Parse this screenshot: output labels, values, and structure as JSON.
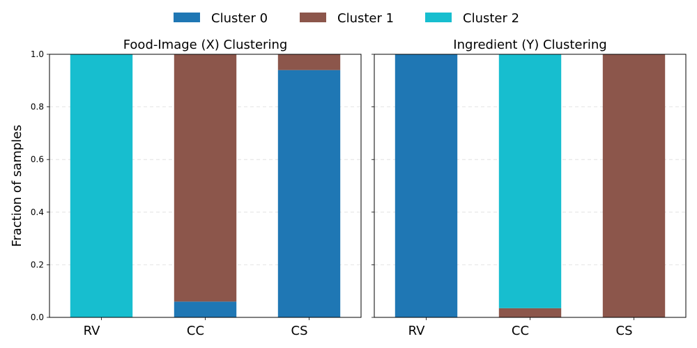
{
  "legend": {
    "placement": "top-center",
    "entries": [
      {
        "label": "Cluster 0",
        "color": "#1f77b4"
      },
      {
        "label": "Cluster 1",
        "color": "#8c564b"
      },
      {
        "label": "Cluster 2",
        "color": "#17becf"
      }
    ]
  },
  "chart_data": [
    {
      "type": "bar",
      "stacked": true,
      "title": "Food-Image (X) Clustering",
      "xlabel": "",
      "ylabel": "Fraction of samples",
      "categories": [
        "RV",
        "CC",
        "CS"
      ],
      "ylim": [
        0,
        1
      ],
      "yticks": [
        "0.0",
        "0.2",
        "0.4",
        "0.6",
        "0.8",
        "1.0"
      ],
      "grid": "horizontal-dashed",
      "series": [
        {
          "name": "Cluster 0",
          "color": "#1f77b4",
          "values": [
            0.0,
            0.06,
            0.94
          ]
        },
        {
          "name": "Cluster 1",
          "color": "#8c564b",
          "values": [
            0.0,
            0.94,
            0.06
          ]
        },
        {
          "name": "Cluster 2",
          "color": "#17becf",
          "values": [
            1.0,
            0.0,
            0.0
          ]
        }
      ]
    },
    {
      "type": "bar",
      "stacked": true,
      "title": "Ingredient (Y) Clustering",
      "xlabel": "",
      "ylabel": "",
      "categories": [
        "RV",
        "CC",
        "CS"
      ],
      "ylim": [
        0,
        1
      ],
      "yticks": [
        "0.0",
        "0.2",
        "0.4",
        "0.6",
        "0.8",
        "1.0"
      ],
      "grid": "horizontal-dashed",
      "series": [
        {
          "name": "Cluster 0",
          "color": "#1f77b4",
          "values": [
            1.0,
            0.0,
            0.0
          ]
        },
        {
          "name": "Cluster 1",
          "color": "#8c564b",
          "values": [
            0.0,
            0.035,
            1.0
          ]
        },
        {
          "name": "Cluster 2",
          "color": "#17becf",
          "values": [
            0.0,
            0.965,
            0.0
          ]
        }
      ]
    }
  ]
}
